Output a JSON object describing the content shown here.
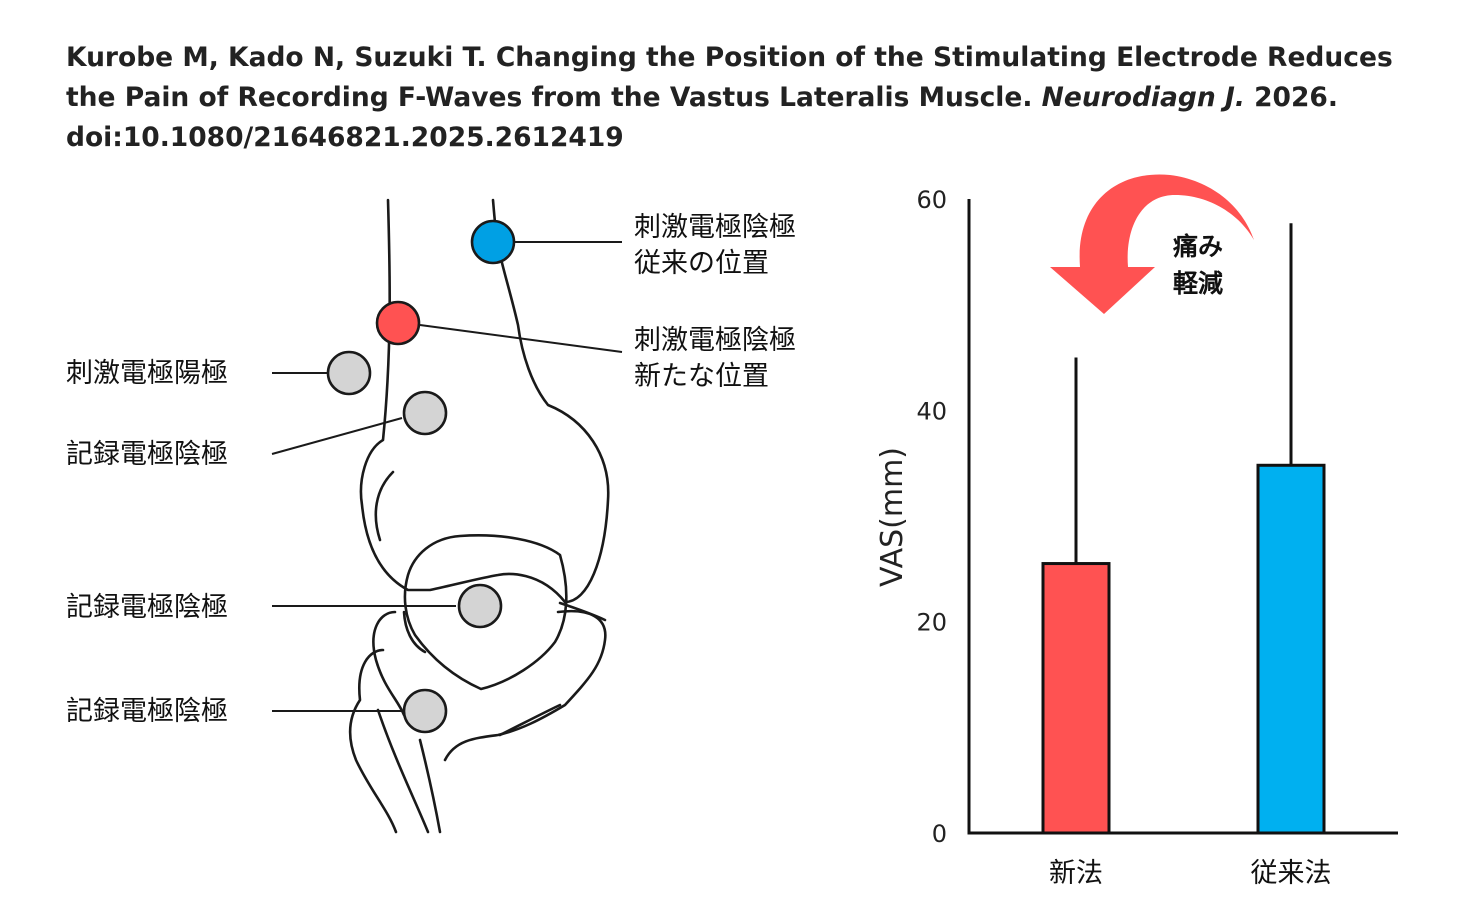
{
  "citation": {
    "line1": "Kurobe M, Kado N, Suzuki T. Changing the Position of the Stimulating Electrode Reduces",
    "line2_pre": "the Pain of Recording F-Waves from the Vastus Lateralis Muscle. ",
    "line2_journal": "Neurodiagn J.",
    "line2_post": " 2026.",
    "line3": "doi:10.1080/21646821.2025.2612419"
  },
  "diagram": {
    "labels": {
      "stim_cathode_conventional_1": "刺激電極陰極",
      "stim_cathode_conventional_2": "従来の位置",
      "stim_cathode_new_1": "刺激電極陰極",
      "stim_cathode_new_2": "新たな位置",
      "stim_anode": "刺激電極陽極",
      "rec_cathode_1": "記録電極陰極",
      "rec_cathode_2": "記録電極陰極",
      "rec_cathode_3": "記録電極陰極"
    },
    "colors": {
      "conventional_electrode": "#00A0E4",
      "new_electrode": "#FF5252",
      "other_electrode": "#D4D4D4",
      "outline": "#1A1A1A"
    }
  },
  "annotation": {
    "line1": "痛み",
    "line2": "軽減",
    "arrow_color": "#FF5252"
  },
  "chart_data": {
    "type": "bar",
    "categories": [
      "新法",
      "従来法"
    ],
    "values": [
      25.5,
      34.8
    ],
    "errors": [
      19.5,
      22.9
    ],
    "colors": [
      "#FF5252",
      "#00B0F0"
    ],
    "ylabel": "VAS(mm)",
    "xlabel": "",
    "ylim": [
      0,
      60
    ],
    "yticks": [
      0,
      20,
      40,
      60
    ],
    "grid": false
  }
}
